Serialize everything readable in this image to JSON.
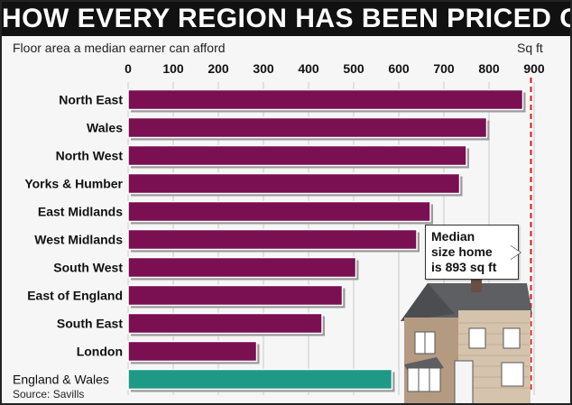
{
  "headline": "HOW EVERY REGION HAS BEEN PRICED OUT",
  "subtitle": "Floor area a median earner can afford",
  "unit_label": "Sq ft",
  "source": "Source: Savills",
  "callout": {
    "line1": "Median",
    "line2": "size home",
    "line3": "is 893 sq ft"
  },
  "colors": {
    "bar": "#7a0f52",
    "highlight": "#1e9985",
    "reference_line": "#d91a1a",
    "header_bg": "#111111"
  },
  "chart_data": {
    "type": "bar",
    "orientation": "horizontal",
    "title": "HOW EVERY REGION HAS BEEN PRICED OUT",
    "subtitle": "Floor area a median earner can afford",
    "xlabel": "Sq ft",
    "xlim": [
      0,
      900
    ],
    "xticks": [
      0,
      100,
      200,
      300,
      400,
      500,
      600,
      700,
      800,
      900
    ],
    "categories": [
      "North East",
      "Wales",
      "North West",
      "Yorks & Humber",
      "East Midlands",
      "West Midlands",
      "South West",
      "East of England",
      "South East",
      "London",
      "England & Wales"
    ],
    "values": [
      875,
      795,
      750,
      735,
      670,
      640,
      505,
      475,
      430,
      285,
      585
    ],
    "highlight_category": "England & Wales",
    "reference_line": {
      "value": 893,
      "label": "Median size home is 893 sq ft"
    },
    "grid": true,
    "source": "Source: Savills"
  }
}
